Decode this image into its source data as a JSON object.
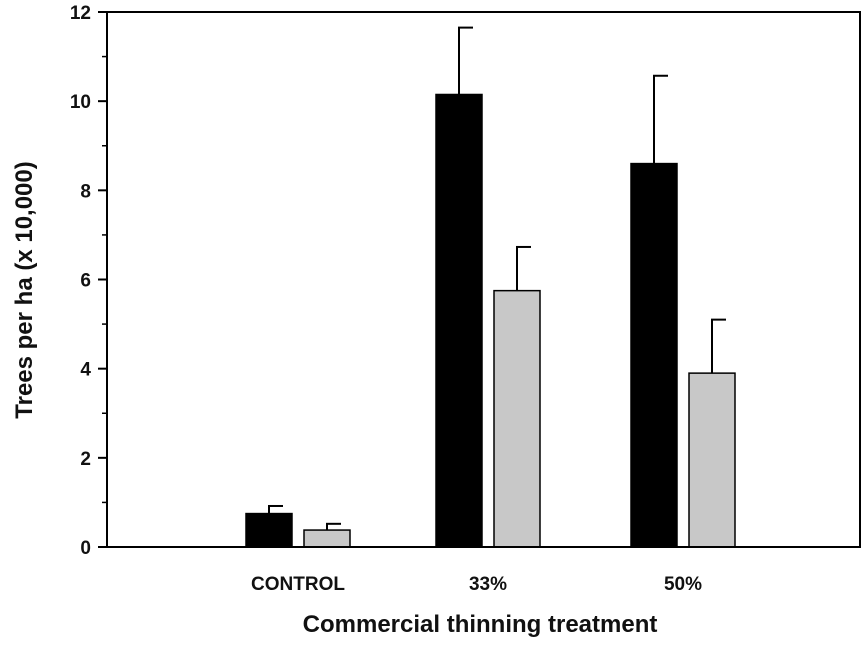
{
  "chart_data": {
    "type": "bar",
    "title": "",
    "xlabel": "Commercial thinning treatment",
    "ylabel": "Trees per ha (x 10,000)",
    "categories": [
      "CONTROL",
      "33%",
      "50%"
    ],
    "ylim": [
      0,
      12
    ],
    "yticks": [
      0,
      2,
      4,
      6,
      8,
      10,
      12
    ],
    "grid": false,
    "legend": "none",
    "series": [
      {
        "color": "#000000",
        "values": [
          0.75,
          10.15,
          8.6
        ],
        "errors": [
          0.17,
          1.5,
          1.97
        ]
      },
      {
        "color": "#c8c8c8",
        "values": [
          0.38,
          5.75,
          3.9
        ],
        "errors": [
          0.14,
          0.98,
          1.2
        ]
      }
    ]
  }
}
